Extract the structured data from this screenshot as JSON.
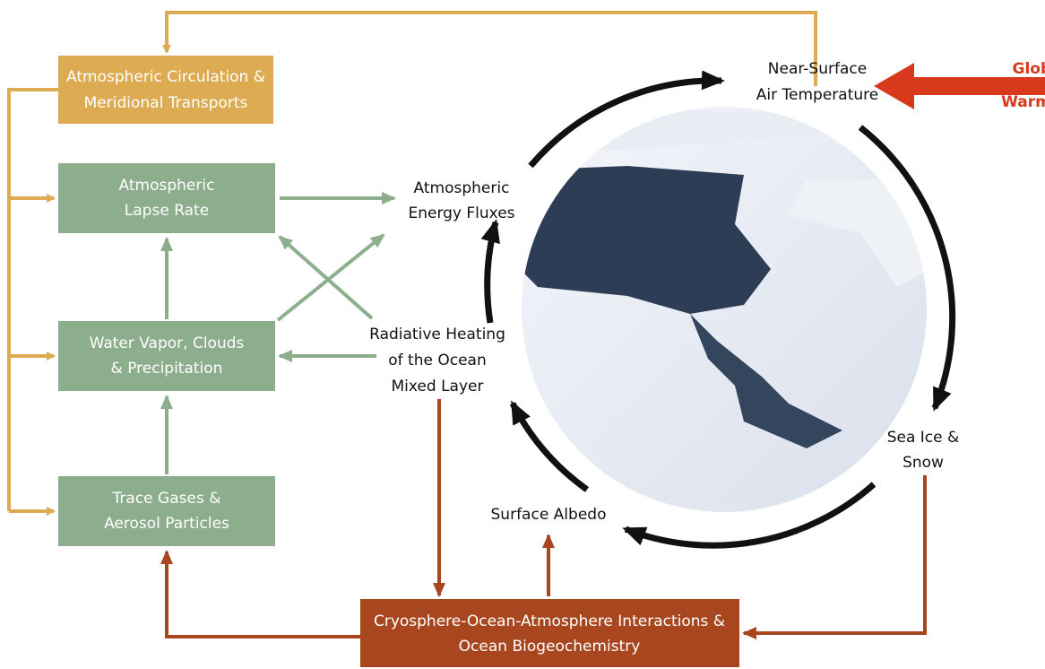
{
  "nodes": [
    {
      "id": "circulation",
      "lines": [
        "Atmospheric Circulation &",
        "Meridional Transports"
      ]
    },
    {
      "id": "lapse",
      "lines": [
        "Atmospheric",
        "Lapse Rate"
      ]
    },
    {
      "id": "vapor",
      "lines": [
        "Water Vapor, Clouds",
        "& Precipitation"
      ]
    },
    {
      "id": "trace",
      "lines": [
        "Trace Gases &",
        "Aerosol Particles"
      ]
    },
    {
      "id": "cryo",
      "lines": [
        "Cryosphere-Ocean-Atmosphere Interactions &",
        "Ocean Biogeochemistry"
      ]
    },
    {
      "id": "fluxes",
      "lines": [
        "Atmospheric",
        "Energy Fluxes"
      ]
    },
    {
      "id": "radiative",
      "lines": [
        "Radiative Heating",
        "of the Ocean",
        "Mixed Layer"
      ]
    },
    {
      "id": "air",
      "lines": [
        "Near-Surface",
        "Air Temperature"
      ]
    },
    {
      "id": "seaice",
      "lines": [
        "Sea Ice &",
        "Snow"
      ]
    },
    {
      "id": "albedo",
      "lines": [
        "Surface Albedo"
      ]
    },
    {
      "id": "warming",
      "lines": [
        "Global",
        "Warming"
      ]
    }
  ]
}
